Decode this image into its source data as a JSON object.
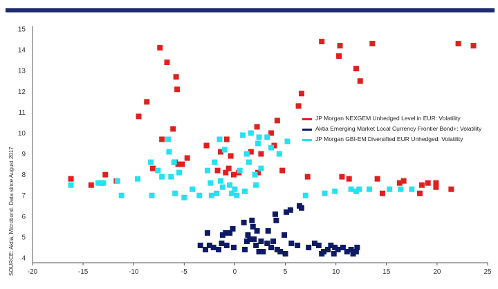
{
  "header": {
    "bar_color": "#1c2a6e"
  },
  "source_note": "SOURCE: Aktia, Microbond. Data since August 2017",
  "chart_data": {
    "type": "scatter",
    "title": "",
    "xlabel": "",
    "ylabel": "",
    "xlim": [
      -20,
      25
    ],
    "ylim": [
      4,
      15
    ],
    "xticks": [
      -20,
      -15,
      -10,
      -5,
      0,
      5,
      10,
      15,
      20,
      25
    ],
    "yticks": [
      4,
      5,
      6,
      7,
      8,
      9,
      10,
      11,
      12,
      13,
      14,
      15
    ],
    "grid": false,
    "legend_position": "right",
    "series": [
      {
        "name": "JP Morgan NEXGEM Unhedged Level in EUR: Volatility",
        "color": "#e02020",
        "points": [
          [
            -16.2,
            7.8
          ],
          [
            -14.2,
            7.5
          ],
          [
            -13.2,
            7.6
          ],
          [
            -12.8,
            8.0
          ],
          [
            -11.7,
            7.7
          ],
          [
            -9.5,
            10.8
          ],
          [
            -8.7,
            11.5
          ],
          [
            -8.1,
            8.3
          ],
          [
            -7.4,
            14.1
          ],
          [
            -7.2,
            9.7
          ],
          [
            -6.7,
            13.4
          ],
          [
            -6.1,
            10.2
          ],
          [
            -5.8,
            12.7
          ],
          [
            -5.7,
            12.1
          ],
          [
            -5.9,
            8.6
          ],
          [
            -5.6,
            8.5
          ],
          [
            -5.2,
            8.5
          ],
          [
            -4.7,
            8.8
          ],
          [
            -2.8,
            9.4
          ],
          [
            -1.7,
            8.2
          ],
          [
            -1.4,
            9.1
          ],
          [
            -0.9,
            8.1
          ],
          [
            -0.8,
            9.7
          ],
          [
            -0.6,
            8.3
          ],
          [
            -0.4,
            8.9
          ],
          [
            -0.1,
            8.0
          ],
          [
            0.4,
            8.1
          ],
          [
            1.6,
            9.1
          ],
          [
            2.2,
            10.3
          ],
          [
            2.3,
            8.1
          ],
          [
            2.6,
            9.0
          ],
          [
            3.6,
            10.0
          ],
          [
            3.9,
            9.4
          ],
          [
            4.2,
            10.6
          ],
          [
            4.7,
            8.2
          ],
          [
            6.3,
            11.3
          ],
          [
            6.6,
            11.9
          ],
          [
            7.2,
            7.9
          ],
          [
            8.6,
            14.4
          ],
          [
            10.4,
            14.2
          ],
          [
            10.3,
            13.7
          ],
          [
            10.6,
            7.9
          ],
          [
            11.3,
            7.8
          ],
          [
            12.0,
            13.1
          ],
          [
            12.4,
            12.5
          ],
          [
            13.6,
            14.3
          ],
          [
            14.1,
            7.8
          ],
          [
            14.6,
            7.1
          ],
          [
            16.3,
            7.6
          ],
          [
            16.7,
            7.7
          ],
          [
            18.3,
            7.1
          ],
          [
            18.5,
            7.5
          ],
          [
            19.1,
            7.6
          ],
          [
            19.9,
            7.4
          ],
          [
            19.9,
            7.6
          ],
          [
            21.4,
            7.3
          ],
          [
            22.1,
            14.3
          ],
          [
            23.6,
            14.2
          ]
        ]
      },
      {
        "name": "Aktia Emerging Market Local Currency Frontier Bond+: Volatility",
        "color": "#0e1a66",
        "points": [
          [
            -3.4,
            4.6
          ],
          [
            -2.9,
            4.4
          ],
          [
            -2.7,
            5.2
          ],
          [
            -2.5,
            4.6
          ],
          [
            -2.1,
            4.5
          ],
          [
            -1.6,
            4.4
          ],
          [
            -1.3,
            4.7
          ],
          [
            -1.2,
            5.1
          ],
          [
            -0.9,
            5.2
          ],
          [
            -0.8,
            4.6
          ],
          [
            -0.5,
            5.2
          ],
          [
            -0.2,
            5.4
          ],
          [
            -0.1,
            4.5
          ],
          [
            0.9,
            5.7
          ],
          [
            1.0,
            4.4
          ],
          [
            1.2,
            4.8
          ],
          [
            1.3,
            5.1
          ],
          [
            1.5,
            4.9
          ],
          [
            1.7,
            5.8
          ],
          [
            1.8,
            5.5
          ],
          [
            1.9,
            4.9
          ],
          [
            2.1,
            4.6
          ],
          [
            2.2,
            5.3
          ],
          [
            2.4,
            4.3
          ],
          [
            2.6,
            4.8
          ],
          [
            2.8,
            4.3
          ],
          [
            3.2,
            4.7
          ],
          [
            3.3,
            5.3
          ],
          [
            3.6,
            4.5
          ],
          [
            3.8,
            4.8
          ],
          [
            4.0,
            6.1
          ],
          [
            4.1,
            5.8
          ],
          [
            4.2,
            4.4
          ],
          [
            4.5,
            4.3
          ],
          [
            4.9,
            5.1
          ],
          [
            5.0,
            4.2
          ],
          [
            5.1,
            6.2
          ],
          [
            5.5,
            6.3
          ],
          [
            5.6,
            4.7
          ],
          [
            6.2,
            4.6
          ],
          [
            6.4,
            6.5
          ],
          [
            6.6,
            6.4
          ],
          [
            7.3,
            4.5
          ],
          [
            7.9,
            4.7
          ],
          [
            8.3,
            4.6
          ],
          [
            8.6,
            4.2
          ],
          [
            8.8,
            4.3
          ],
          [
            9.2,
            4.4
          ],
          [
            9.5,
            4.6
          ],
          [
            9.8,
            4.2
          ],
          [
            10.2,
            4.4
          ],
          [
            10.7,
            4.5
          ],
          [
            11.1,
            4.3
          ],
          [
            11.5,
            4.4
          ],
          [
            12.0,
            4.3
          ],
          [
            12.1,
            4.5
          ],
          [
            11.7,
            4.2
          ],
          [
            9.9,
            4.5
          ]
        ]
      },
      {
        "name": "JP Morgan GBI-EM Diversified EUR Unhedged: Volatility",
        "color": "#27e0f0",
        "points": [
          [
            -16.2,
            7.5
          ],
          [
            -13.5,
            7.6
          ],
          [
            -13.0,
            7.6
          ],
          [
            -11.6,
            7.7
          ],
          [
            -11.2,
            7.0
          ],
          [
            -9.6,
            7.8
          ],
          [
            -8.3,
            8.6
          ],
          [
            -8.2,
            7.0
          ],
          [
            -7.6,
            8.2
          ],
          [
            -7.2,
            7.9
          ],
          [
            -6.6,
            9.7
          ],
          [
            -6.5,
            9.1
          ],
          [
            -6.3,
            7.9
          ],
          [
            -6.0,
            8.6
          ],
          [
            -5.9,
            7.1
          ],
          [
            -5.5,
            8.1
          ],
          [
            -5.0,
            6.9
          ],
          [
            -4.2,
            7.3
          ],
          [
            -3.5,
            7.0
          ],
          [
            -2.7,
            8.2
          ],
          [
            -2.4,
            7.6
          ],
          [
            -2.3,
            7.0
          ],
          [
            -2.0,
            8.6
          ],
          [
            -1.8,
            7.1
          ],
          [
            -1.4,
            7.7
          ],
          [
            -1.2,
            7.4
          ],
          [
            -1.0,
            9.2
          ],
          [
            -0.5,
            7.5
          ],
          [
            -0.3,
            7.1
          ],
          [
            0.0,
            7.3
          ],
          [
            0.2,
            7.0
          ],
          [
            0.5,
            8.2
          ],
          [
            0.8,
            9.9
          ],
          [
            1.0,
            7.2
          ],
          [
            1.2,
            9.0
          ],
          [
            1.4,
            8.6
          ],
          [
            1.6,
            10.0
          ],
          [
            2.1,
            7.5
          ],
          [
            2.3,
            9.5
          ],
          [
            2.4,
            9.8
          ],
          [
            2.6,
            8.3
          ],
          [
            3.2,
            9.8
          ],
          [
            3.6,
            9.3
          ],
          [
            4.4,
            9.0
          ],
          [
            5.2,
            9.6
          ],
          [
            7.0,
            7.0
          ],
          [
            8.9,
            7.1
          ],
          [
            9.9,
            7.2
          ],
          [
            11.5,
            7.3
          ],
          [
            12.0,
            7.2
          ],
          [
            12.3,
            7.3
          ],
          [
            13.3,
            7.3
          ],
          [
            15.3,
            7.3
          ],
          [
            16.4,
            7.3
          ],
          [
            17.5,
            7.3
          ],
          [
            -1.5,
            9.7
          ],
          [
            2.0,
            8.0
          ]
        ]
      }
    ]
  }
}
